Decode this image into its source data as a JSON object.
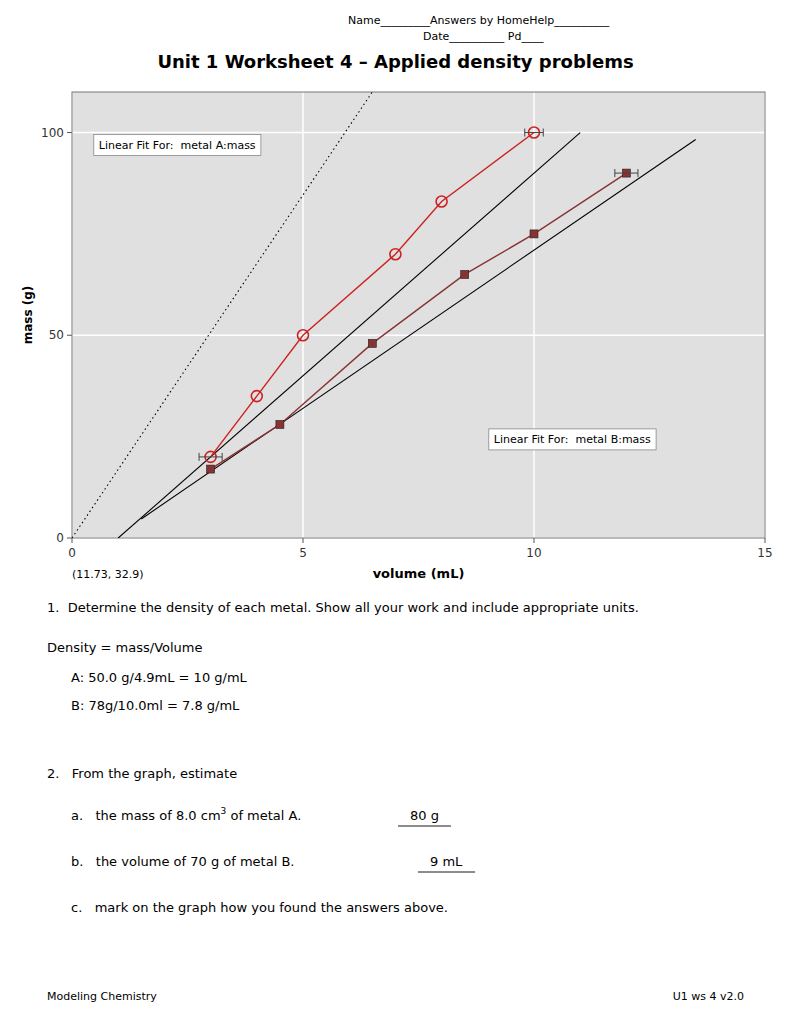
{
  "chart_data": {
    "type": "line",
    "title": "Unit 1 Worksheet 4 – Applied density problems",
    "x_label": "volume (mL)",
    "y_label": "mass (g)",
    "xlim": [
      0,
      15
    ],
    "ylim": [
      0,
      110
    ],
    "xticks": [
      0,
      5,
      10,
      15
    ],
    "yticks": [
      0,
      50,
      100
    ],
    "grid": true,
    "series": [
      {
        "color": "#cc2222",
        "marker": "circle",
        "x": [
          3.0,
          4.0,
          5.0,
          7.0,
          8.0,
          10.0
        ],
        "values": [
          20.0,
          35.0,
          50.0,
          70.0,
          83.0,
          100.0
        ]
      },
      {
        "name": "Linear Fit For:  metal A:mass",
        "color": "#000000",
        "line_style": "solid",
        "x": [
          1.0,
          11.0
        ],
        "values": [
          0.0,
          100.0
        ]
      },
      {
        "color": "#883333",
        "marker": "square",
        "x": [
          3.0,
          4.5,
          6.5,
          8.5,
          10.0,
          12.0
        ],
        "values": [
          17.0,
          28.0,
          48.0,
          65.0,
          75.0,
          90.0
        ]
      },
      {
        "name": "Linear Fit For:  metal B:mass",
        "color": "#000000",
        "line_style": "solid",
        "x": [
          1.5,
          13.5
        ],
        "values": [
          4.7,
          98.3
        ]
      },
      {
        "color": "#000000",
        "line_style": "dotted",
        "x": [
          0,
          6.5
        ],
        "values": [
          0,
          110
        ]
      }
    ],
    "error_bars": [
      {
        "x": 3.0,
        "y": 20.0,
        "xerr": 0.25
      },
      {
        "x": 12.0,
        "y": 90.0,
        "xerr": 0.25
      },
      {
        "x": 10.0,
        "y": 100.0,
        "xerr": 0.2
      }
    ],
    "annotations": [
      "Name_________Answers by HomeHelp__________",
      "Date__________ Pd____",
      "(11.73, 32.9)",
      "1.  Determine the density of each metal. Show all your work and include appropriate units.",
      "Density = mass/Volume",
      "A: 50.0 g/4.9mL = 10 g/mL",
      "B: 78g/10.0ml = 7.8 g/mL",
      "2.   From the graph, estimate",
      "a.   the mass of 8.0 cm",
      "3",
      " of metal A.",
      "80 g",
      "b.   the volume of 70 g of metal B.",
      "9 mL",
      "c.   mark on the graph how you found the answers above.",
      "Modeling Chemistry",
      "U1 ws 4 v2.0"
    ]
  }
}
